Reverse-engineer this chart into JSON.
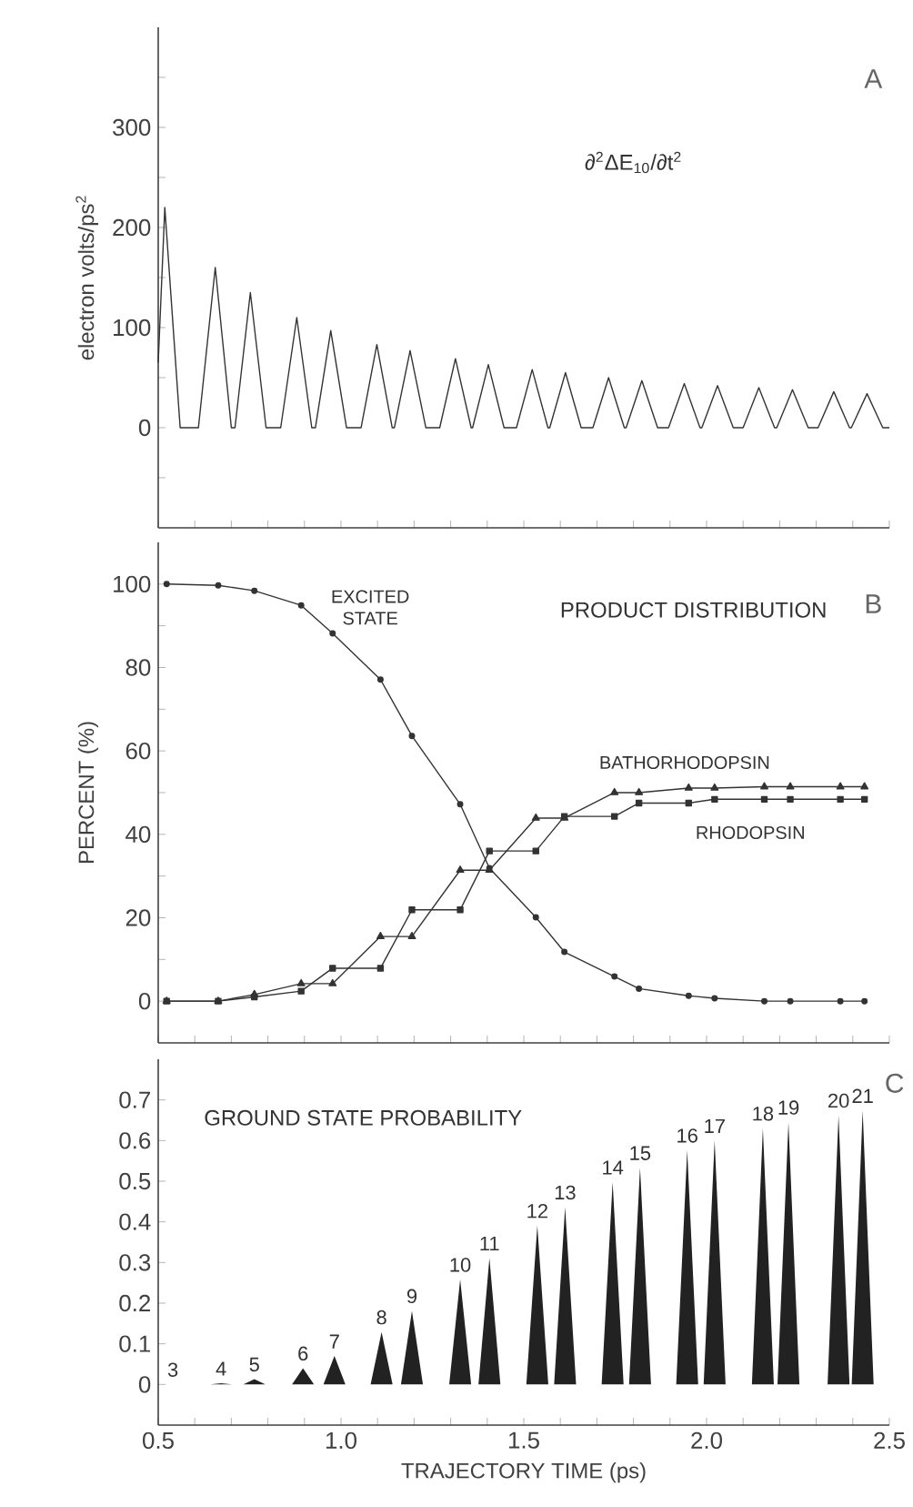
{
  "chart_data": [
    {
      "type": "line",
      "title": "∂$^{2}$ΔE$_{10}$/∂t$^{2}$",
      "ylabel": "electron volts/ps$^{2}$",
      "annotations": [
        "A"
      ],
      "xlim": [
        0.5,
        2.5
      ],
      "ylim": [
        -100,
        400
      ],
      "tick_labels": "y",
      "xticks": [
        0.5,
        {
          "value": 0.6,
          "label": null
        },
        {
          "value": 0.7,
          "label": null
        },
        {
          "value": 0.8,
          "label": null
        },
        {
          "value": 0.9,
          "label": null
        },
        1.0,
        {
          "value": 1.1,
          "label": null
        },
        {
          "value": 1.2,
          "label": null
        },
        {
          "value": 1.3,
          "label": null
        },
        {
          "value": 1.4,
          "label": null
        },
        1.5,
        {
          "value": 1.6,
          "label": null
        },
        {
          "value": 1.7,
          "label": null
        },
        {
          "value": 1.8,
          "label": null
        },
        {
          "value": 1.9,
          "label": null
        },
        2.0,
        {
          "value": 2.1,
          "label": null
        },
        {
          "value": 2.2,
          "label": null
        },
        {
          "value": 2.3,
          "label": null
        },
        {
          "value": 2.4,
          "label": null
        },
        2.5
      ],
      "yticks": [
        {
          "value": -50,
          "label": null
        },
        0,
        {
          "value": 50,
          "label": null
        },
        100,
        {
          "value": 150,
          "label": null
        },
        200,
        {
          "value": 250,
          "label": null
        },
        300,
        {
          "value": 350,
          "label": null
        }
      ],
      "x": [
        0.5,
        0.518,
        0.56,
        0.61,
        0.656,
        0.7,
        0.71,
        0.752,
        0.795,
        0.835,
        0.879,
        0.92,
        0.93,
        0.972,
        1.015,
        1.055,
        1.098,
        1.14,
        1.146,
        1.189,
        1.232,
        1.27,
        1.313,
        1.356,
        1.36,
        1.403,
        1.446,
        1.48,
        1.523,
        1.566,
        1.571,
        1.614,
        1.657,
        1.689,
        1.732,
        1.775,
        1.78,
        1.823,
        1.866,
        1.896,
        1.939,
        1.982,
        1.987,
        2.03,
        2.073,
        2.1,
        2.143,
        2.186,
        2.192,
        2.235,
        2.278,
        2.305,
        2.348,
        2.391,
        2.396,
        2.439,
        2.482,
        2.5
      ],
      "series": [
        {
          "color": "#333333",
          "marker": "none",
          "values": [
            65,
            220,
            0,
            0,
            160,
            0,
            0,
            135,
            0,
            0,
            110,
            0,
            0,
            97,
            0,
            0,
            83,
            0,
            0,
            77,
            0,
            0,
            69,
            0,
            0,
            63,
            0,
            0,
            58,
            0,
            0,
            55,
            0,
            0,
            50,
            0,
            0,
            47,
            0,
            0,
            44,
            0,
            0,
            42,
            0,
            0,
            40,
            0,
            0,
            38,
            0,
            0,
            36,
            0,
            0,
            34,
            0,
            0
          ]
        }
      ]
    },
    {
      "type": "line",
      "title": "PRODUCT DISTRIBUTION",
      "ylabel": "PERCENT (%)",
      "annotations": [
        "B"
      ],
      "xlim": [
        0.5,
        2.5
      ],
      "ylim": [
        -10,
        110
      ],
      "tick_labels": "y",
      "xticks": [
        0.5,
        {
          "value": 0.6,
          "label": null
        },
        {
          "value": 0.7,
          "label": null
        },
        {
          "value": 0.8,
          "label": null
        },
        {
          "value": 0.9,
          "label": null
        },
        1.0,
        {
          "value": 1.1,
          "label": null
        },
        {
          "value": 1.2,
          "label": null
        },
        {
          "value": 1.3,
          "label": null
        },
        {
          "value": 1.4,
          "label": null
        },
        1.5,
        {
          "value": 1.6,
          "label": null
        },
        {
          "value": 1.7,
          "label": null
        },
        {
          "value": 1.8,
          "label": null
        },
        {
          "value": 1.9,
          "label": null
        },
        2.0,
        {
          "value": 2.1,
          "label": null
        },
        {
          "value": 2.2,
          "label": null
        },
        {
          "value": 2.3,
          "label": null
        },
        {
          "value": 2.4,
          "label": null
        },
        2.5
      ],
      "yticks": [
        0,
        {
          "value": 10,
          "label": null
        },
        20,
        {
          "value": 30,
          "label": null
        },
        40,
        {
          "value": 50,
          "label": null
        },
        60,
        {
          "value": 70,
          "label": null
        },
        80,
        {
          "value": 90,
          "label": null
        },
        100
      ],
      "x": [
        0.523,
        0.664,
        0.763,
        0.891,
        0.977,
        1.108,
        1.194,
        1.326,
        1.406,
        1.533,
        1.611,
        1.748,
        1.815,
        1.951,
        2.022,
        2.158,
        2.229,
        2.366,
        2.432
      ],
      "series": [
        {
          "name": "EXCITED STATE",
          "color": "#333333",
          "marker": "circle",
          "values": [
            100,
            99.7,
            98.4,
            94.9,
            88.2,
            77.1,
            63.6,
            47.2,
            31.9,
            20.1,
            11.8,
            5.9,
            3.0,
            1.3,
            0.7,
            0,
            0,
            0,
            0
          ]
        },
        {
          "name": "BATHORHODOPSIN",
          "color": "#333333",
          "marker": "triangle",
          "values": [
            0,
            0,
            1.6,
            4.2,
            4.2,
            15.5,
            15.5,
            31.4,
            31.4,
            43.9,
            43.9,
            50.0,
            50.0,
            51.1,
            51.1,
            51.4,
            51.4,
            51.4,
            51.4
          ]
        },
        {
          "name": "RHODOPSIN",
          "color": "#333333",
          "marker": "square",
          "values": [
            0,
            0,
            1.0,
            2.4,
            7.9,
            7.9,
            21.9,
            21.9,
            36.0,
            36.0,
            44.3,
            44.3,
            47.5,
            47.5,
            48.4,
            48.4,
            48.4,
            48.4,
            48.4
          ]
        }
      ]
    },
    {
      "type": "area",
      "title": "GROUND STATE PROBABILITY",
      "xlabel": "TRAJECTORY TIME (ps)",
      "annotations": [
        "C",
        {
          "text": "3",
          "x": 0.54,
          "y": 0
        },
        {
          "text": "4",
          "x": 0.672,
          "y": 0.003
        },
        {
          "text": "5",
          "x": 0.763,
          "y": 0.013
        },
        {
          "text": "6",
          "x": 0.896,
          "y": 0.04
        },
        {
          "text": "7",
          "x": 0.982,
          "y": 0.07
        },
        {
          "text": "8",
          "x": 1.111,
          "y": 0.129
        },
        {
          "text": "9",
          "x": 1.194,
          "y": 0.181
        },
        {
          "text": "10",
          "x": 1.326,
          "y": 0.258
        },
        {
          "text": "11",
          "x": 1.406,
          "y": 0.311
        },
        {
          "text": "12",
          "x": 1.537,
          "y": 0.391
        },
        {
          "text": "13",
          "x": 1.613,
          "y": 0.436
        },
        {
          "text": "14",
          "x": 1.743,
          "y": 0.498
        },
        {
          "text": "15",
          "x": 1.818,
          "y": 0.533
        },
        {
          "text": "16",
          "x": 1.947,
          "y": 0.576
        },
        {
          "text": "17",
          "x": 2.022,
          "y": 0.6
        },
        {
          "text": "18",
          "x": 2.154,
          "y": 0.63
        },
        {
          "text": "19",
          "x": 2.224,
          "y": 0.645
        },
        {
          "text": "20",
          "x": 2.361,
          "y": 0.662
        },
        {
          "text": "21",
          "x": 2.427,
          "y": 0.674
        }
      ],
      "xlim": [
        0.5,
        2.5
      ],
      "ylim": [
        -0.1,
        0.8
      ],
      "xticks": [
        0.5,
        {
          "value": 0.6,
          "label": null
        },
        {
          "value": 0.7,
          "label": null
        },
        {
          "value": 0.8,
          "label": null
        },
        {
          "value": 0.9,
          "label": null
        },
        {
          "value": 1.0,
          "label": "1.0"
        },
        {
          "value": 1.1,
          "label": null
        },
        {
          "value": 1.2,
          "label": null
        },
        {
          "value": 1.3,
          "label": null
        },
        {
          "value": 1.4,
          "label": null
        },
        1.5,
        {
          "value": 1.6,
          "label": null
        },
        {
          "value": 1.7,
          "label": null
        },
        {
          "value": 1.8,
          "label": null
        },
        {
          "value": 1.9,
          "label": null
        },
        {
          "value": 2.0,
          "label": "2.0"
        },
        {
          "value": 2.1,
          "label": null
        },
        {
          "value": 2.2,
          "label": null
        },
        {
          "value": 2.3,
          "label": null
        },
        {
          "value": 2.4,
          "label": null
        },
        2.5
      ],
      "yticks": [
        0,
        0.1,
        0.2,
        0.3,
        0.4,
        0.5,
        0.6,
        0.7
      ],
      "x": [
        0.5,
        0.642,
        0.672,
        0.702,
        0.733,
        0.763,
        0.793,
        0.866,
        0.896,
        0.926,
        0.952,
        0.982,
        1.012,
        1.081,
        1.111,
        1.141,
        1.164,
        1.194,
        1.224,
        1.296,
        1.326,
        1.356,
        1.376,
        1.406,
        1.436,
        1.507,
        1.537,
        1.567,
        1.583,
        1.613,
        1.643,
        1.713,
        1.743,
        1.773,
        1.788,
        1.818,
        1.848,
        1.917,
        1.947,
        1.977,
        1.992,
        2.022,
        2.052,
        2.124,
        2.154,
        2.184,
        2.194,
        2.224,
        2.254,
        2.331,
        2.361,
        2.391,
        2.397,
        2.427,
        2.457,
        2.5
      ],
      "series": [
        {
          "color": "#222222",
          "values": [
            0,
            0,
            0.003,
            0,
            0,
            0.013,
            0,
            0,
            0.04,
            0,
            0,
            0.07,
            0,
            0,
            0.129,
            0,
            0,
            0.181,
            0,
            0,
            0.258,
            0,
            0,
            0.311,
            0,
            0,
            0.391,
            0,
            0,
            0.436,
            0,
            0,
            0.498,
            0,
            0,
            0.533,
            0,
            0,
            0.576,
            0,
            0,
            0.6,
            0,
            0,
            0.63,
            0,
            0,
            0.645,
            0,
            0,
            0.662,
            0,
            0,
            0.674,
            0,
            0
          ]
        }
      ]
    }
  ]
}
